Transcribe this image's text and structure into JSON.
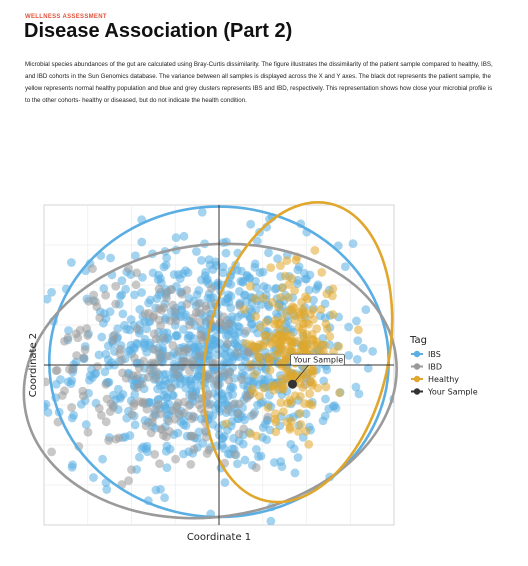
{
  "header": {
    "eyebrow": "WELLNESS ASSESSMENT",
    "eyebrow_color": "#e0523a",
    "title": "Disease Association (Part 2)"
  },
  "description": "Microbial species abundances of the gut are calculated using Bray-Curtis dissimilarity. The figure illustrates the dissimilarity of the patient sample compared to healthy, IBS, and IBD cohorts in the Sun Genomics database. The variance between all samples is displayed across the X and Y axes. The black dot represents the patient sample, the yellow represents normal healthy population and blue and grey clusters represents IBS and IBD, respectively. This representation shows how close your microbial profile is to the other cohorts- healthy or diseased, but do not indicate the health condition.",
  "chart_data": {
    "type": "scatter",
    "xlabel": "Coordinate 1",
    "ylabel": "Coordinate 2",
    "xlim": [
      -1,
      1
    ],
    "ylim": [
      -1,
      1
    ],
    "grid": true,
    "legend_title": "Tag",
    "legend_position": "right",
    "callout": "Your Sample",
    "series": [
      {
        "name": "IBS",
        "color": "#5aaee3",
        "count": 900,
        "center": [
          -0.05,
          0.05
        ],
        "spread": [
          0.9,
          0.85
        ]
      },
      {
        "name": "IBD",
        "color": "#9a9a9a",
        "count": 220,
        "center": [
          -0.3,
          -0.05
        ],
        "spread": [
          0.85,
          0.75
        ]
      },
      {
        "name": "Healthy",
        "color": "#e0a72c",
        "count": 230,
        "center": [
          0.42,
          0.12
        ],
        "spread": [
          0.28,
          0.55
        ]
      },
      {
        "name": "Your Sample",
        "color": "#333333",
        "point": [
          0.42,
          -0.12
        ]
      }
    ],
    "ellipses": [
      {
        "series": "IBS",
        "center": [
          0.0,
          0.02
        ],
        "radii": [
          0.97,
          0.97
        ],
        "angle_deg": 0
      },
      {
        "series": "IBD",
        "center": [
          -0.05,
          -0.1
        ],
        "radii": [
          1.07,
          0.85
        ],
        "angle_deg": -8
      },
      {
        "series": "Healthy",
        "center": [
          0.45,
          0.08
        ],
        "radii": [
          0.52,
          0.95
        ],
        "angle_deg": 12
      }
    ]
  }
}
